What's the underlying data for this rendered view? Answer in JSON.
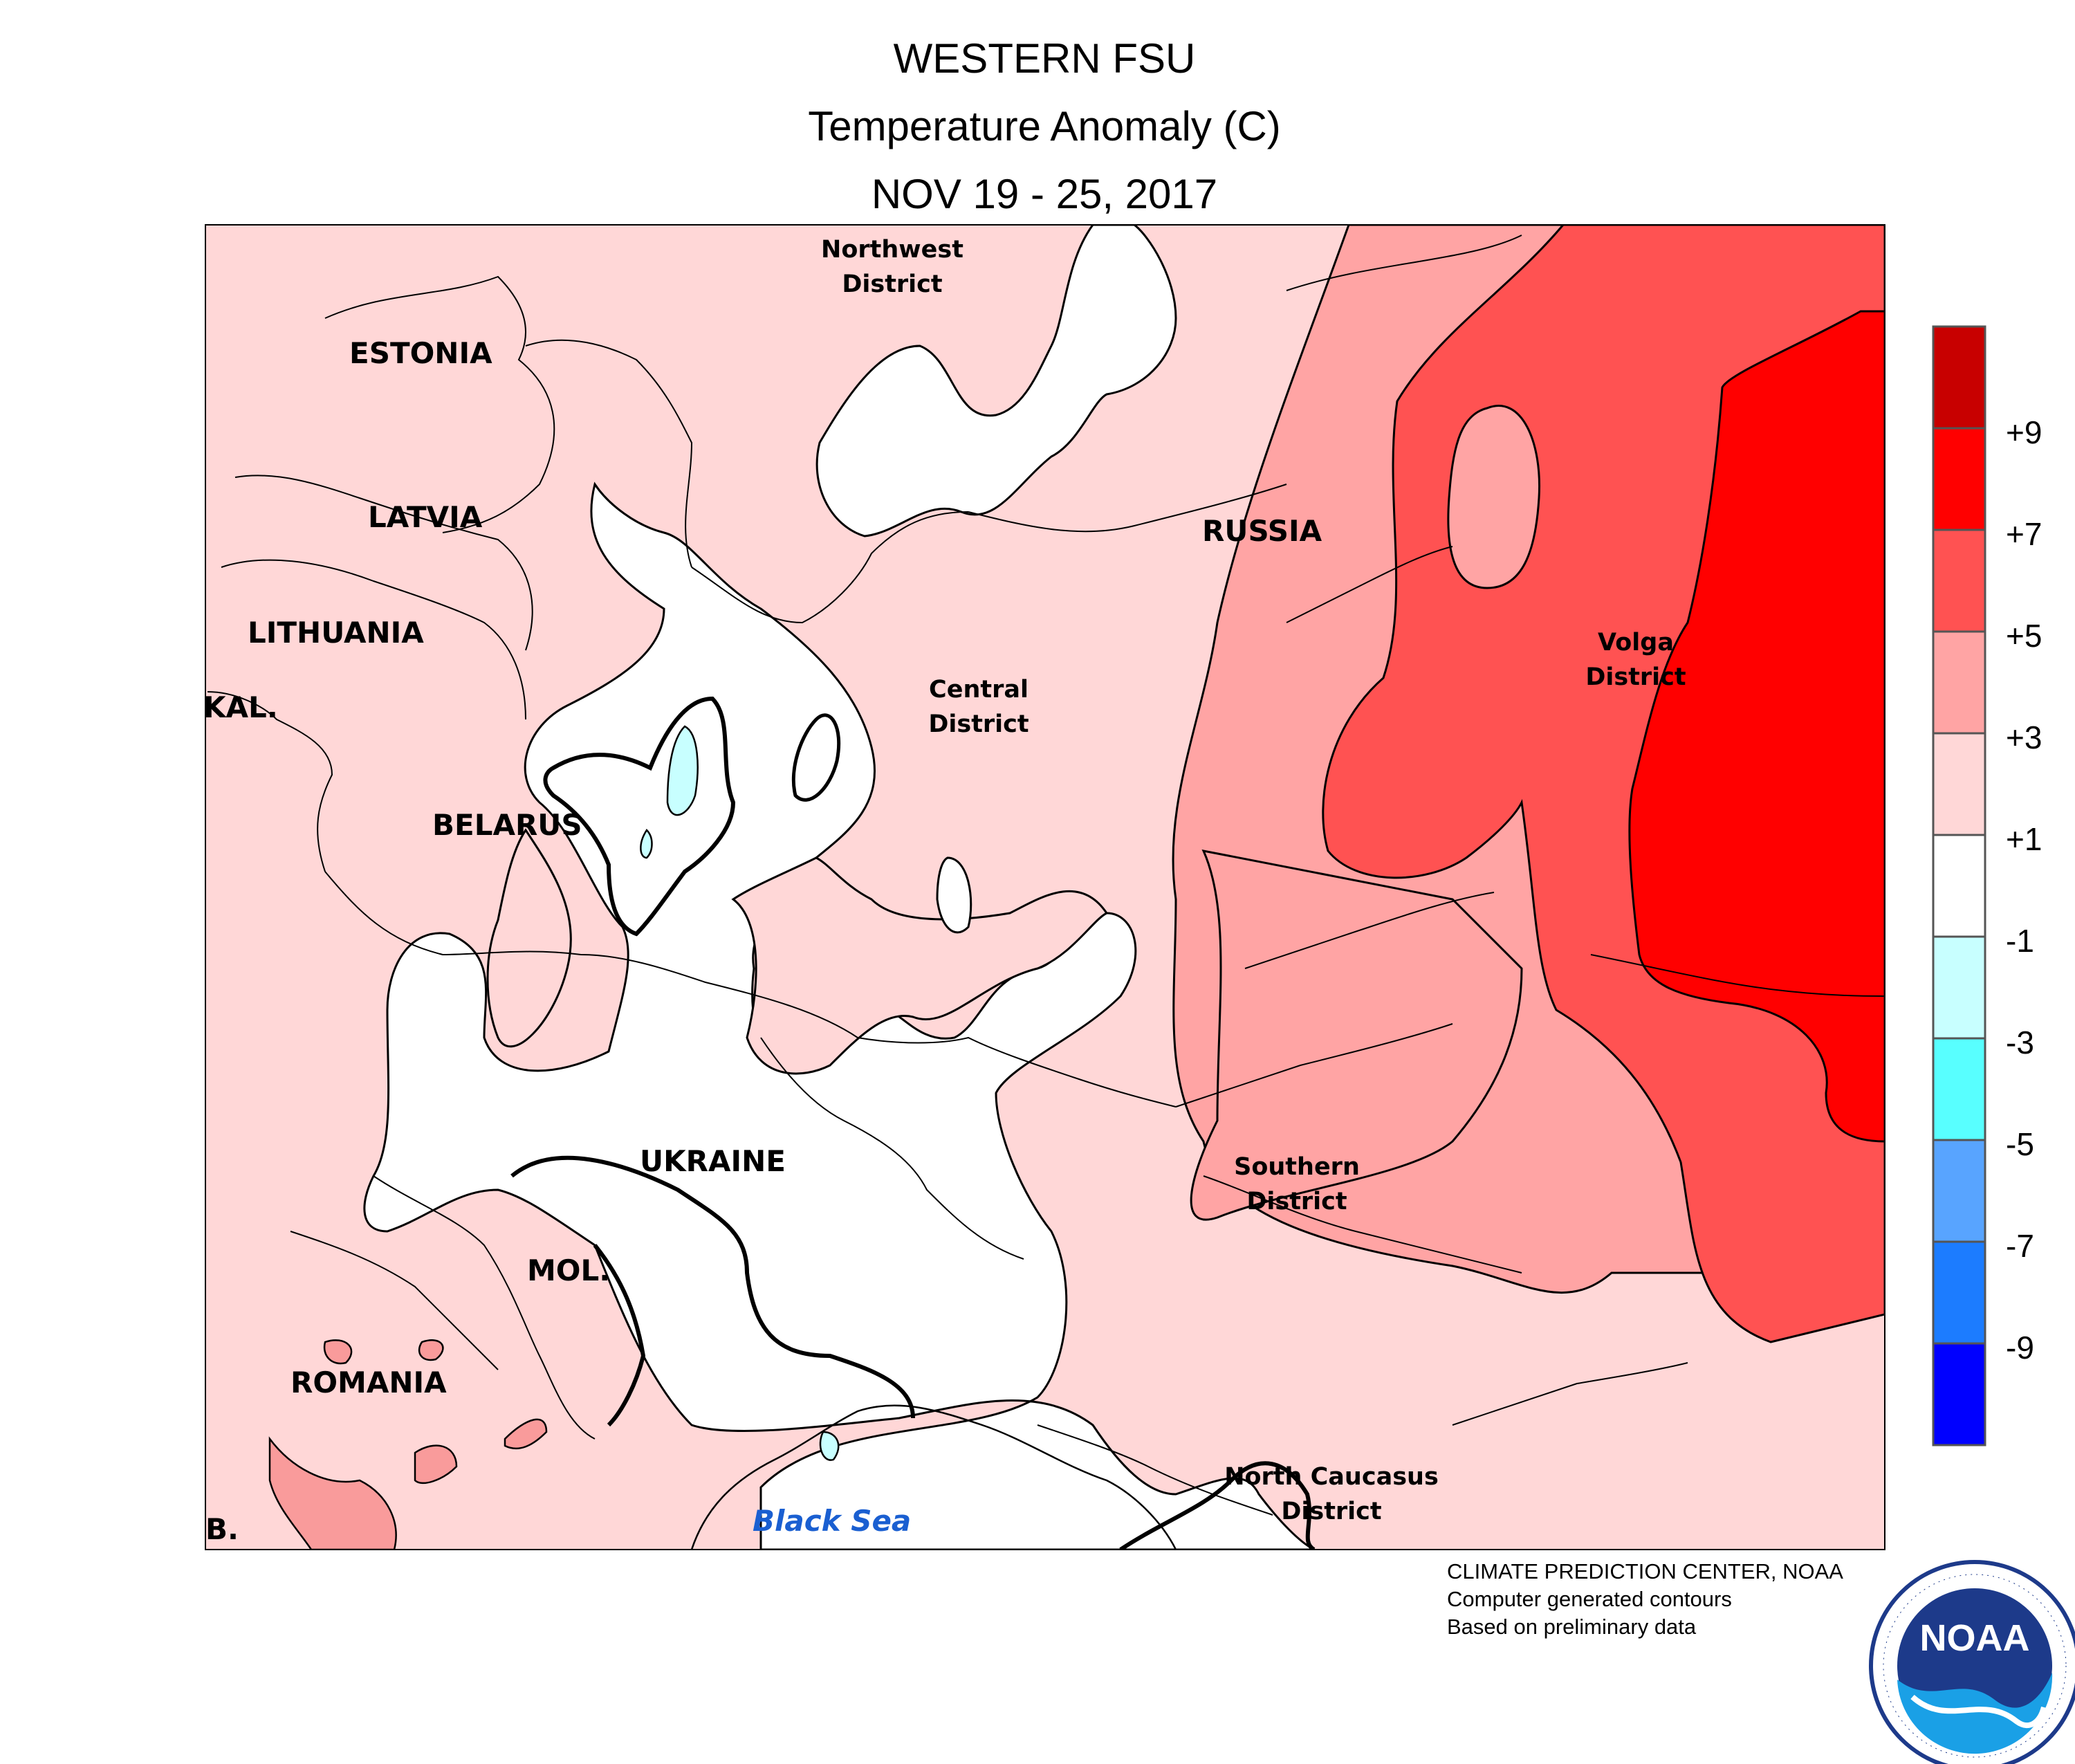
{
  "title": {
    "line1": "WESTERN FSU",
    "line2": "Temperature Anomaly (C)",
    "line3": "NOV 19 - 25, 2017"
  },
  "legend": {
    "labels": [
      "+9",
      "+7",
      "+5",
      "+3",
      "+1",
      "-1",
      "-3",
      "-5",
      "-7",
      "-9"
    ],
    "colors": [
      "#c80000",
      "#ff0000",
      "#ff5252",
      "#ffa4a4",
      "#ffd7d7",
      "#ffffff",
      "#c8ffff",
      "#58ffff",
      "#58a4ff",
      "#1c7cff",
      "#0000ff"
    ]
  },
  "labels": {
    "estonia": "ESTONIA",
    "latvia": "LATVIA",
    "lithuania": "LITHUANIA",
    "kal": "KAL.",
    "belarus": "BELARUS",
    "ukraine": "UKRAINE",
    "mol": "MOL.",
    "romania": "ROMANIA",
    "bl": "B.",
    "russia": "RUSSIA",
    "nw1": "Northwest",
    "nw2": "District",
    "cd1": "Central",
    "cd2": "District",
    "vd1": "Volga",
    "vd2": "District",
    "sd1": "Southern",
    "sd2": "District",
    "nc1": "North Caucasus",
    "nc2": "District",
    "sea": "Black Sea"
  },
  "credits": {
    "line1": "CLIMATE PREDICTION CENTER, NOAA",
    "line2": "Computer generated contours",
    "line3": "Based on preliminary data"
  },
  "logo": {
    "text": "NOAA",
    "ring": "NATIONAL OCEANIC AND ATMOSPHERIC ADMINISTRATION · U.S. DEPARTMENT OF COMMERCE"
  },
  "colors": {
    "band_1_3": "#ffd7d7",
    "band_3_5": "#ffa4a4",
    "band_5_7": "#ff5252",
    "band_7_9": "#ff0000",
    "band_0": "#ffffff",
    "band_neg1_neg3": "#c8ffff",
    "sea_label": "#1a5fd1",
    "noaa_blue": "#1d3a8a"
  }
}
